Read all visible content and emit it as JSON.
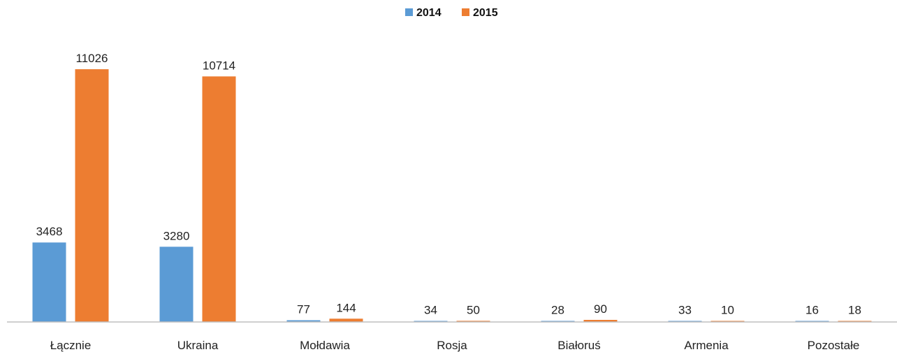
{
  "chart_data": {
    "type": "bar",
    "title": "",
    "xlabel": "",
    "ylabel": "",
    "categories": [
      "Łącznie",
      "Ukraina",
      "Mołdawia",
      "Rosja",
      "Białoruś",
      "Armenia",
      "Pozostałe"
    ],
    "series": [
      {
        "name": "2014",
        "color": "#5B9BD5",
        "values": [
          3468,
          3280,
          77,
          34,
          28,
          33,
          16
        ]
      },
      {
        "name": "2015",
        "color": "#ED7D31",
        "values": [
          11026,
          10714,
          144,
          50,
          90,
          10,
          18
        ]
      }
    ],
    "data_labels": [
      [
        "3468",
        "3280",
        "77",
        "34",
        "28",
        "33",
        "16"
      ],
      [
        "11026",
        "10714",
        "144",
        "50",
        "90",
        "10",
        "18"
      ]
    ],
    "ylim": [
      0,
      11700
    ],
    "legend_position": "top-center",
    "grid": false,
    "axis_color": "#BFBFBF"
  }
}
